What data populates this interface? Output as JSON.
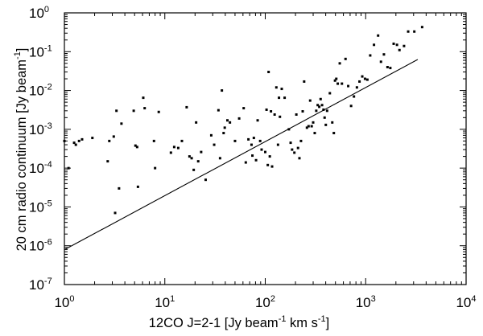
{
  "chart_data": {
    "type": "scatter",
    "title": "",
    "x_scale": "log",
    "y_scale": "log",
    "xlim": [
      1,
      10000
    ],
    "ylim": [
      1e-07,
      1
    ],
    "x_ticks": [
      {
        "base": "10",
        "exp": "0",
        "value": 1
      },
      {
        "base": "10",
        "exp": "1",
        "value": 10
      },
      {
        "base": "10",
        "exp": "2",
        "value": 100
      },
      {
        "base": "10",
        "exp": "3",
        "value": 1000
      },
      {
        "base": "10",
        "exp": "4",
        "value": 10000
      }
    ],
    "y_ticks": [
      {
        "base": "10",
        "exp": "-7",
        "value": 1e-07
      },
      {
        "base": "10",
        "exp": "-6",
        "value": 1e-06
      },
      {
        "base": "10",
        "exp": "-5",
        "value": 1e-05
      },
      {
        "base": "10",
        "exp": "-4",
        "value": 0.0001
      },
      {
        "base": "10",
        "exp": "-3",
        "value": 0.001
      },
      {
        "base": "10",
        "exp": "-2",
        "value": 0.01
      },
      {
        "base": "10",
        "exp": "-1",
        "value": 0.1
      },
      {
        "base": "10",
        "exp": "0",
        "value": 1
      }
    ],
    "xlabel_parts": [
      "12CO J=2-1 [Jy beam",
      "-1",
      " km s",
      "-1",
      "]"
    ],
    "ylabel_parts": [
      "20 cm radio continuum [Jy beam",
      "-1",
      "]"
    ],
    "line": {
      "x": [
        1,
        3300
      ],
      "y": [
        7.9e-07,
        0.063
      ]
    },
    "series": [
      {
        "name": "data",
        "points": [
          [
            1.0,
            0.0005
          ],
          [
            1.1,
            0.0001
          ],
          [
            1.25,
            0.00045
          ],
          [
            1.3,
            0.0004
          ],
          [
            1.4,
            0.0005
          ],
          [
            1.5,
            0.00055
          ],
          [
            1.9,
            0.0006
          ],
          [
            2.7,
            0.00015
          ],
          [
            2.8,
            0.0005
          ],
          [
            3.1,
            0.00065
          ],
          [
            3.2,
            7e-06
          ],
          [
            3.3,
            0.003
          ],
          [
            3.5,
            3e-05
          ],
          [
            3.7,
            0.0014
          ],
          [
            4.9,
            0.003
          ],
          [
            5.1,
            0.00038
          ],
          [
            5.3,
            0.00035
          ],
          [
            5.4,
            3.3e-05
          ],
          [
            6.1,
            0.0065
          ],
          [
            6.3,
            0.0035
          ],
          [
            7.8,
            0.0005
          ],
          [
            8.0,
            0.0001
          ],
          [
            8.7,
            0.0028
          ],
          [
            11.5,
            0.00025
          ],
          [
            12.4,
            0.00035
          ],
          [
            13.6,
            0.00033
          ],
          [
            14.8,
            0.0005
          ],
          [
            16.5,
            0.0037
          ],
          [
            17.6,
            0.0002
          ],
          [
            18.5,
            0.00018
          ],
          [
            19.4,
            9e-05
          ],
          [
            20.5,
            0.0015
          ],
          [
            21.5,
            0.00015
          ],
          [
            23.0,
            0.00026
          ],
          [
            25.5,
            5e-05
          ],
          [
            29.0,
            0.0007
          ],
          [
            31.0,
            0.0004
          ],
          [
            34.2,
            0.0031
          ],
          [
            35.5,
            0.00018
          ],
          [
            37.0,
            0.01
          ],
          [
            38.5,
            0.0008
          ],
          [
            39.5,
            0.0011
          ],
          [
            42.0,
            0.0017
          ],
          [
            44.5,
            0.0015
          ],
          [
            50.0,
            0.0005
          ],
          [
            55.0,
            0.0019
          ],
          [
            61.0,
            0.0035
          ],
          [
            64.0,
            0.00014
          ],
          [
            68.0,
            0.00055
          ],
          [
            73.0,
            0.0004
          ],
          [
            74.5,
            0.00021
          ],
          [
            77.0,
            0.0006
          ],
          [
            81.0,
            0.00016
          ],
          [
            84.0,
            0.0017
          ],
          [
            89.0,
            0.0005
          ],
          [
            92.0,
            0.0003
          ],
          [
            100.0,
            0.00026
          ],
          [
            103.0,
            0.0032
          ],
          [
            106.0,
            0.00012
          ],
          [
            108.0,
            0.03
          ],
          [
            111.0,
            0.0002
          ],
          [
            114.0,
            0.0029
          ],
          [
            117.0,
            0.00011
          ],
          [
            124.0,
            0.0024
          ],
          [
            129.0,
            0.012
          ],
          [
            134.0,
            0.0004
          ],
          [
            137.0,
            0.0065
          ],
          [
            140.0,
            0.0021
          ],
          [
            146.0,
            0.011
          ],
          [
            156.0,
            0.0065
          ],
          [
            172.0,
            0.001
          ],
          [
            179.0,
            0.00045
          ],
          [
            185.0,
            0.0003
          ],
          [
            195.0,
            0.00025
          ],
          [
            204.0,
            0.0024
          ],
          [
            212.0,
            0.00033
          ],
          [
            219.0,
            0.00018
          ],
          [
            227.0,
            0.0005
          ],
          [
            236.0,
            0.0029
          ],
          [
            244.0,
            0.017
          ],
          [
            260.0,
            0.0011
          ],
          [
            270.0,
            0.0012
          ],
          [
            280.0,
            0.0055
          ],
          [
            290.0,
            0.0012
          ],
          [
            300.0,
            0.0015
          ],
          [
            311.0,
            0.0008
          ],
          [
            322.0,
            0.003
          ],
          [
            333.0,
            0.0042
          ],
          [
            345.0,
            0.0038
          ],
          [
            356.0,
            0.006
          ],
          [
            368.0,
            0.0042
          ],
          [
            380.0,
            0.0032
          ],
          [
            390.0,
            0.002
          ],
          [
            401.0,
            0.0013
          ],
          [
            413.0,
            0.003
          ],
          [
            440.0,
            0.0085
          ],
          [
            465.0,
            0.0015
          ],
          [
            482.0,
            0.0008
          ],
          [
            495.0,
            0.018
          ],
          [
            510.0,
            0.02
          ],
          [
            527.0,
            0.015
          ],
          [
            552.0,
            0.05
          ],
          [
            580.0,
            0.015
          ],
          [
            630.0,
            0.065
          ],
          [
            670.0,
            0.013
          ],
          [
            716.0,
            0.004
          ],
          [
            764.0,
            0.007
          ],
          [
            818.0,
            0.012
          ],
          [
            868.0,
            0.017
          ],
          [
            925.0,
            0.023
          ],
          [
            985.0,
            0.02
          ],
          [
            1040.0,
            0.019
          ],
          [
            1110.0,
            0.08
          ],
          [
            1210.0,
            0.15
          ],
          [
            1330.0,
            0.26
          ],
          [
            1420.0,
            0.055
          ],
          [
            1520.0,
            0.085
          ],
          [
            1650.0,
            0.04
          ],
          [
            1760.0,
            0.038
          ],
          [
            1900.0,
            0.16
          ],
          [
            2050.0,
            0.15
          ],
          [
            2170.0,
            0.11
          ],
          [
            2410.0,
            0.14
          ],
          [
            2650.0,
            0.33
          ],
          [
            3050.0,
            0.33
          ],
          [
            3650.0,
            0.43
          ]
        ]
      }
    ]
  }
}
